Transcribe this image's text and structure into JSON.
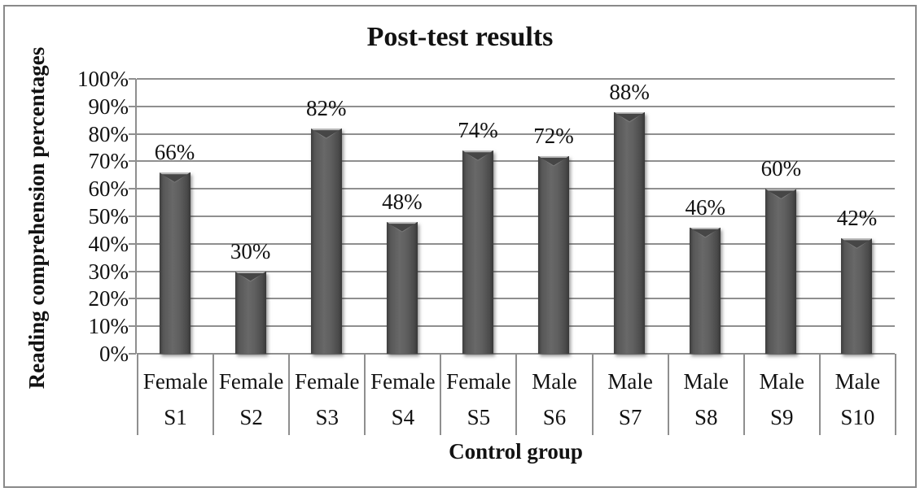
{
  "figure": {
    "border_color": "#898989",
    "background": "#ffffff"
  },
  "chart_data": {
    "type": "bar",
    "title": "Post-test results",
    "xlabel": "Control group",
    "ylabel": "Reading comprehension percentages",
    "categories": [
      "S1",
      "S2",
      "S3",
      "S4",
      "S5",
      "S6",
      "S7",
      "S8",
      "S9",
      "S10"
    ],
    "group_labels": [
      "Female",
      "Female",
      "Female",
      "Female",
      "Female",
      "Male",
      "Male",
      "Male",
      "Male",
      "Male"
    ],
    "values": [
      66,
      30,
      82,
      48,
      74,
      72,
      88,
      46,
      60,
      42
    ],
    "data_labels": [
      "66%",
      "30%",
      "82%",
      "48%",
      "74%",
      "72%",
      "88%",
      "46%",
      "60%",
      "42%"
    ],
    "y_ticks": [
      "0%",
      "10%",
      "20%",
      "30%",
      "40%",
      "50%",
      "60%",
      "70%",
      "80%",
      "90%",
      "100%"
    ],
    "ylim": [
      0,
      100
    ],
    "grid": true,
    "legend": false,
    "bar_color": "#595959",
    "gridline_color": "#8f8f8f"
  }
}
